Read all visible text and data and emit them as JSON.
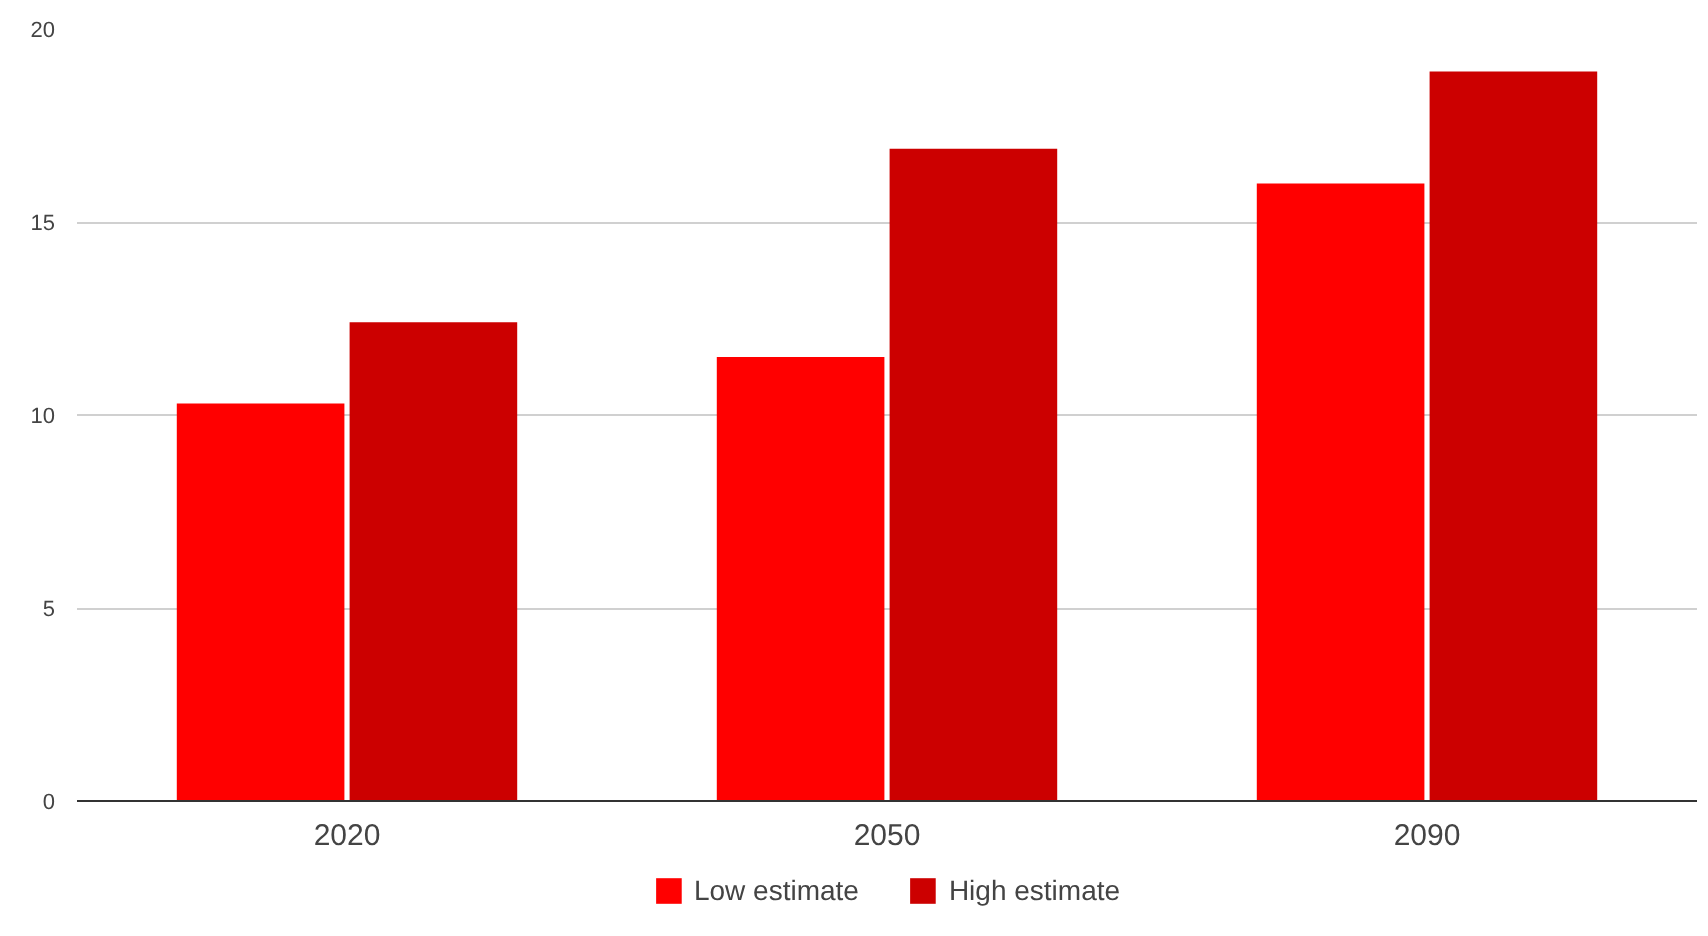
{
  "chart_data": {
    "type": "bar",
    "categories": [
      "2020",
      "2050",
      "2090"
    ],
    "series": [
      {
        "name": "Low estimate",
        "color": "#ff0000",
        "values": [
          10.3,
          11.5,
          16.0
        ]
      },
      {
        "name": "High estimate",
        "color": "#cc0000",
        "values": [
          12.4,
          16.9,
          18.9
        ]
      }
    ],
    "ylim": [
      0,
      20
    ],
    "yticks": [
      0,
      5,
      10,
      15,
      20
    ],
    "grid": "y",
    "legend": "bottom"
  }
}
